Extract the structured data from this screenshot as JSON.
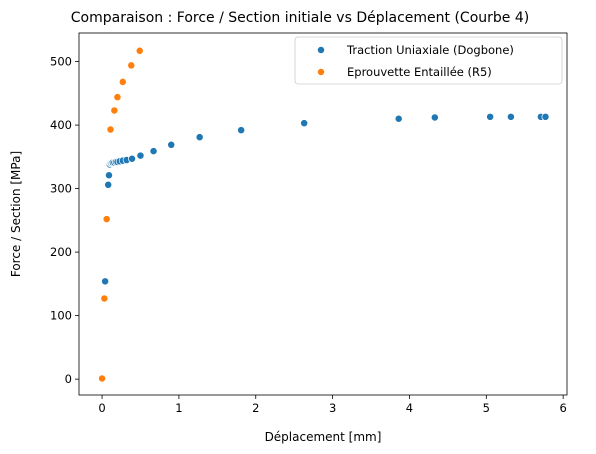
{
  "chart_data": {
    "type": "scatter",
    "title": "Comparaison : Force / Section initiale vs Déplacement (Courbe 4)",
    "xlabel": "Déplacement [mm]",
    "ylabel": "Force / Section [MPa]",
    "xlim": [
      -0.3,
      6.05
    ],
    "ylim": [
      -25,
      545
    ],
    "xticks": [
      0,
      1,
      2,
      3,
      4,
      5,
      6
    ],
    "yticks": [
      0,
      100,
      200,
      300,
      400,
      500
    ],
    "legend_position": "top-right",
    "grid": false,
    "series": [
      {
        "name": "Traction Uniaxiale (Dogbone)",
        "color": "#1f77b4",
        "points": [
          [
            0.04,
            154
          ],
          [
            0.08,
            306
          ],
          [
            0.09,
            321
          ],
          [
            0.1,
            338
          ],
          [
            0.11,
            340
          ],
          [
            0.12,
            340
          ],
          [
            0.13,
            341
          ],
          [
            0.14,
            341
          ],
          [
            0.16,
            341
          ],
          [
            0.18,
            342
          ],
          [
            0.2,
            342
          ],
          [
            0.23,
            343
          ],
          [
            0.27,
            344
          ],
          [
            0.32,
            345
          ],
          [
            0.39,
            347
          ],
          [
            0.5,
            352
          ],
          [
            0.67,
            359
          ],
          [
            0.9,
            369
          ],
          [
            1.27,
            381
          ],
          [
            1.81,
            392
          ],
          [
            2.63,
            403
          ],
          [
            3.86,
            410
          ],
          [
            4.33,
            412
          ],
          [
            5.05,
            413
          ],
          [
            5.32,
            413
          ],
          [
            5.71,
            413
          ],
          [
            5.77,
            413
          ]
        ]
      },
      {
        "name": "Eprouvette Entaillée (R5)",
        "color": "#ff7f0e",
        "points": [
          [
            0.0,
            1
          ],
          [
            0.03,
            127
          ],
          [
            0.06,
            252
          ],
          [
            0.11,
            393
          ],
          [
            0.16,
            423
          ],
          [
            0.2,
            444
          ],
          [
            0.27,
            468
          ],
          [
            0.38,
            494
          ],
          [
            0.49,
            517
          ]
        ]
      }
    ]
  }
}
